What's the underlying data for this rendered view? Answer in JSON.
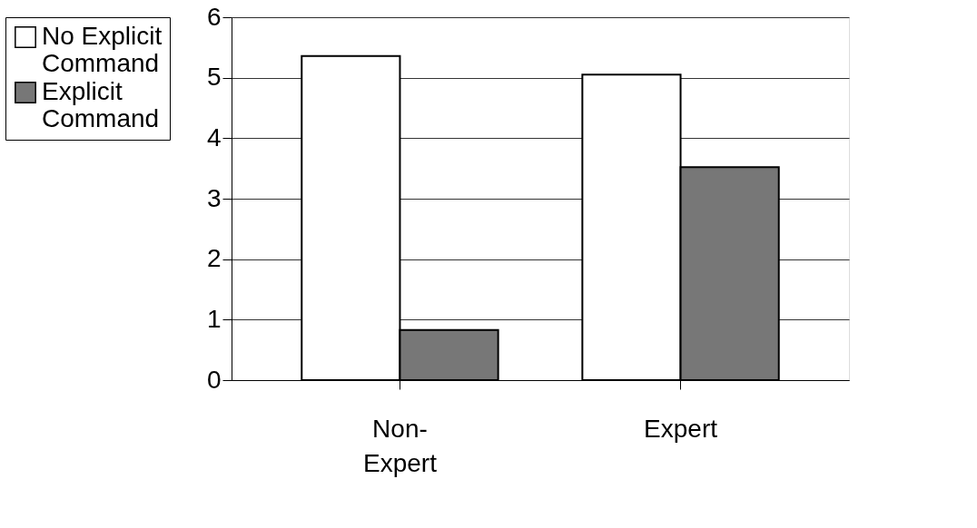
{
  "chart_data": {
    "type": "bar",
    "categories": [
      "Non-Expert",
      "Expert"
    ],
    "series": [
      {
        "name": "No Explicit Command",
        "color": "#ffffff",
        "values": [
          5.36,
          5.05
        ]
      },
      {
        "name": "Explicit Command",
        "color": "#777777",
        "values": [
          0.83,
          3.52
        ]
      }
    ],
    "ylim": [
      0,
      6
    ],
    "yticks": [
      0,
      1,
      2,
      3,
      4,
      5,
      6
    ],
    "grid": "y",
    "legend": "left"
  }
}
